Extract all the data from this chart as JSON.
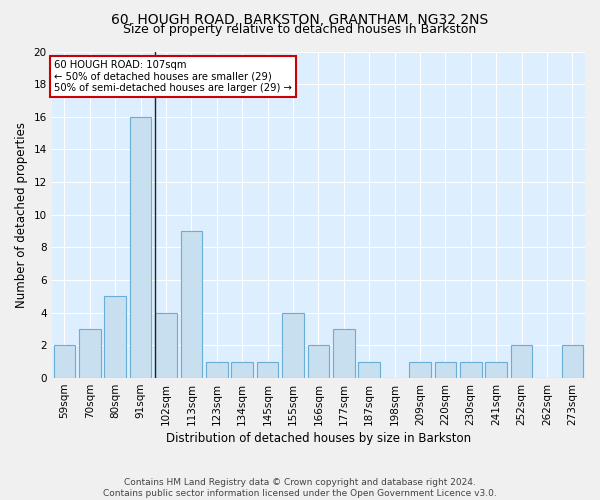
{
  "title1": "60, HOUGH ROAD, BARKSTON, GRANTHAM, NG32 2NS",
  "title2": "Size of property relative to detached houses in Barkston",
  "xlabel": "Distribution of detached houses by size in Barkston",
  "ylabel": "Number of detached properties",
  "categories": [
    "59sqm",
    "70sqm",
    "80sqm",
    "91sqm",
    "102sqm",
    "113sqm",
    "123sqm",
    "134sqm",
    "145sqm",
    "155sqm",
    "166sqm",
    "177sqm",
    "187sqm",
    "198sqm",
    "209sqm",
    "220sqm",
    "230sqm",
    "241sqm",
    "252sqm",
    "262sqm",
    "273sqm"
  ],
  "values": [
    2,
    3,
    5,
    16,
    4,
    9,
    1,
    1,
    1,
    4,
    2,
    3,
    1,
    0,
    1,
    1,
    1,
    1,
    2,
    0,
    2
  ],
  "bar_color": "#c8dff0",
  "bar_edge_color": "#6aaed6",
  "marker_label": "60 HOUGH ROAD: 107sqm",
  "annotation_line1": "← 50% of detached houses are smaller (29)",
  "annotation_line2": "50% of semi-detached houses are larger (29) →",
  "annotation_box_color": "#ffffff",
  "annotation_box_edge": "#cc0000",
  "vline_x": 3.57,
  "vline_color": "#222222",
  "fig_background": "#f0f0f0",
  "background_color": "#ddeeff",
  "grid_color": "#ffffff",
  "ylim": [
    0,
    20
  ],
  "yticks": [
    0,
    2,
    4,
    6,
    8,
    10,
    12,
    14,
    16,
    18,
    20
  ],
  "footer": "Contains HM Land Registry data © Crown copyright and database right 2024.\nContains public sector information licensed under the Open Government Licence v3.0.",
  "title1_fontsize": 10,
  "title2_fontsize": 9,
  "xlabel_fontsize": 8.5,
  "ylabel_fontsize": 8.5,
  "tick_fontsize": 7.5,
  "footer_fontsize": 6.5
}
